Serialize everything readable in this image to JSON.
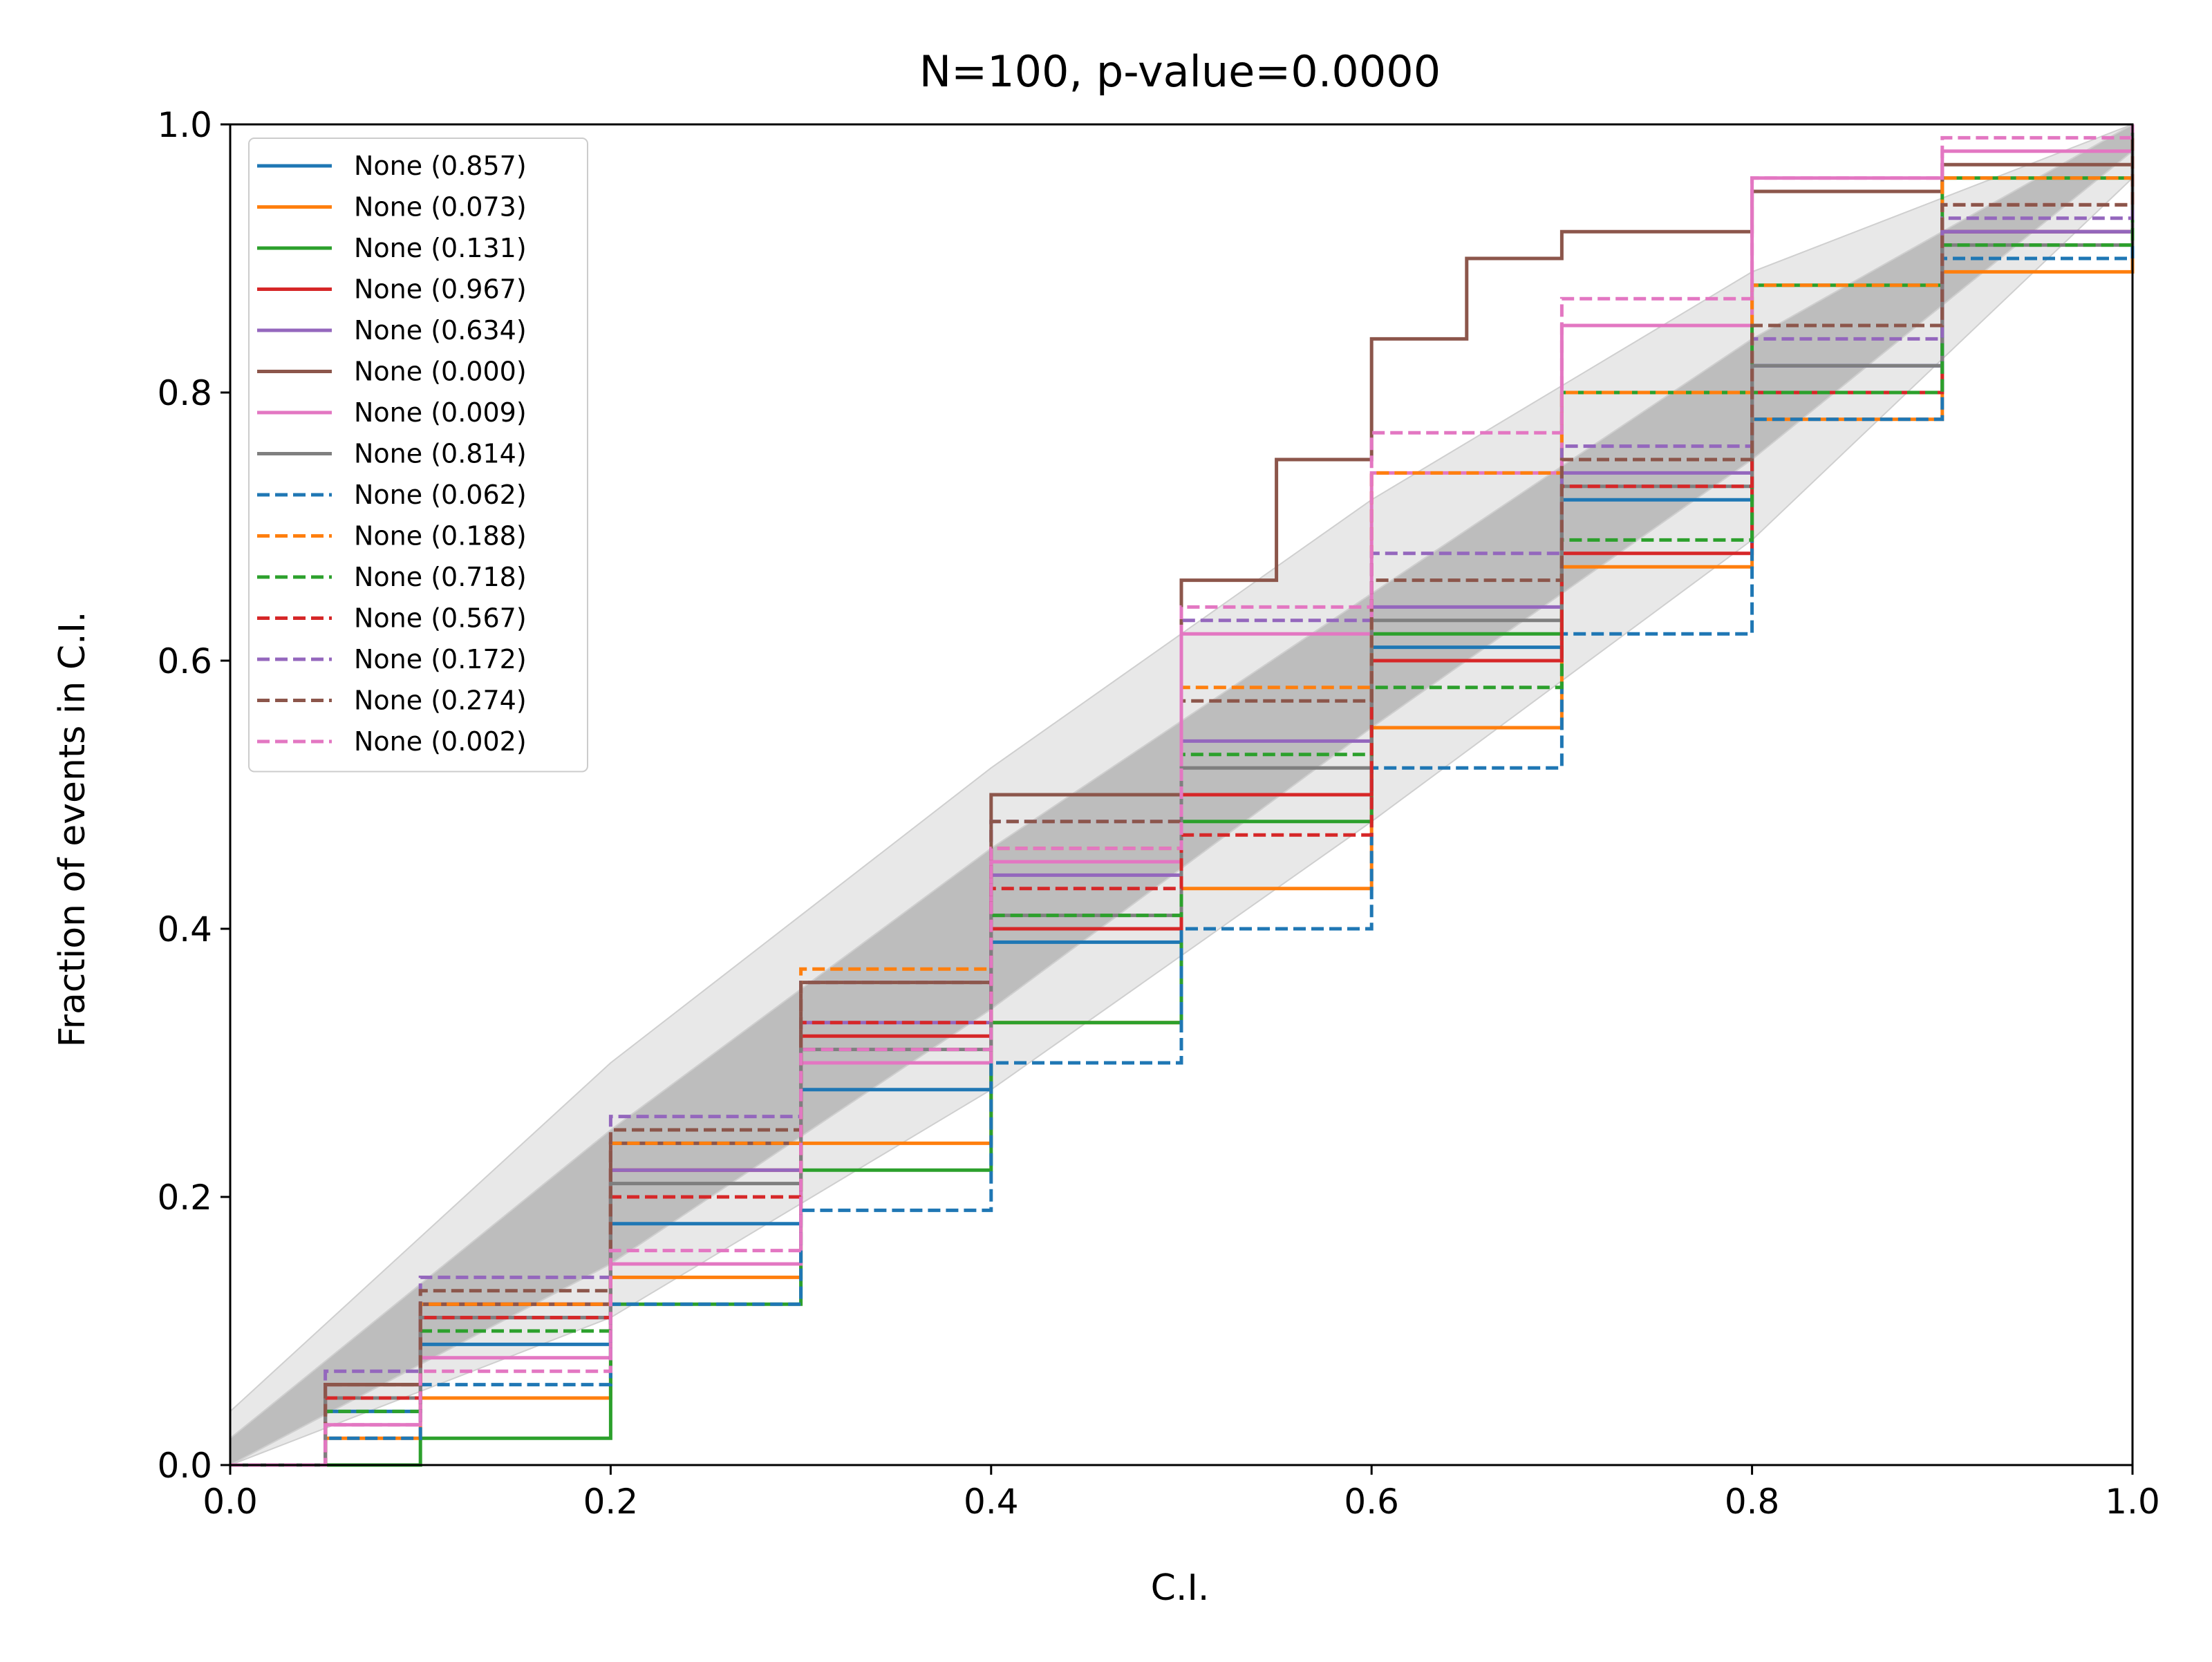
{
  "chart_data": {
    "type": "line",
    "title": "N=100, p-value=0.0000",
    "xlabel": "C.I.",
    "ylabel": "Fraction of events in C.I.",
    "xlim": [
      0,
      1
    ],
    "ylim": [
      0,
      1
    ],
    "xticks": [
      0.0,
      0.2,
      0.4,
      0.6,
      0.8,
      1.0
    ],
    "yticks": [
      0.0,
      0.2,
      0.4,
      0.6,
      0.8,
      1.0
    ],
    "xtick_labels": [
      "0.0",
      "0.2",
      "0.4",
      "0.6",
      "0.8",
      "1.0"
    ],
    "ytick_labels": [
      "0.0",
      "0.2",
      "0.4",
      "0.6",
      "0.8",
      "1.0"
    ],
    "grid": false,
    "legend_position": "upper-left",
    "confidence_bands": [
      {
        "level": "outer",
        "color": "#e8e8e8",
        "x": [
          0,
          0.2,
          0.4,
          0.6,
          0.8,
          1.0
        ],
        "lower": [
          0,
          0.11,
          0.28,
          0.48,
          0.69,
          0.96
        ],
        "upper": [
          0.04,
          0.3,
          0.52,
          0.72,
          0.89,
          1.0
        ]
      },
      {
        "level": "inner",
        "color": "#bdbdbd",
        "x": [
          0,
          0.2,
          0.4,
          0.6,
          0.8,
          1.0
        ],
        "lower": [
          0,
          0.15,
          0.34,
          0.55,
          0.75,
          0.98
        ],
        "upper": [
          0.02,
          0.25,
          0.46,
          0.65,
          0.84,
          1.0
        ]
      }
    ],
    "series": [
      {
        "label": "None (0.857)",
        "color": "#1f77b4",
        "dash": "solid",
        "x": [
          0,
          0.05,
          0.1,
          0.2,
          0.3,
          0.4,
          0.5,
          0.6,
          0.7,
          0.8,
          0.9,
          1.0
        ],
        "y": [
          0,
          0.04,
          0.09,
          0.18,
          0.28,
          0.39,
          0.5,
          0.61,
          0.72,
          0.82,
          0.92,
          1.0
        ]
      },
      {
        "label": "None (0.073)",
        "color": "#ff7f0e",
        "dash": "solid",
        "x": [
          0,
          0.05,
          0.1,
          0.2,
          0.3,
          0.4,
          0.5,
          0.6,
          0.7,
          0.8,
          0.9,
          1.0
        ],
        "y": [
          0,
          0.02,
          0.05,
          0.14,
          0.24,
          0.33,
          0.43,
          0.55,
          0.67,
          0.78,
          0.89,
          1.0
        ]
      },
      {
        "label": "None (0.131)",
        "color": "#2ca02c",
        "dash": "solid",
        "x": [
          0,
          0.05,
          0.1,
          0.2,
          0.3,
          0.4,
          0.5,
          0.6,
          0.7,
          0.8,
          0.9,
          1.0
        ],
        "y": [
          0,
          0.0,
          0.02,
          0.12,
          0.22,
          0.33,
          0.48,
          0.62,
          0.8,
          0.88,
          0.96,
          1.0
        ]
      },
      {
        "label": "None (0.967)",
        "color": "#d62728",
        "dash": "solid",
        "x": [
          0,
          0.05,
          0.1,
          0.2,
          0.3,
          0.4,
          0.5,
          0.6,
          0.7,
          0.8,
          0.9,
          1.0
        ],
        "y": [
          0,
          0.06,
          0.12,
          0.22,
          0.32,
          0.4,
          0.5,
          0.6,
          0.68,
          0.8,
          0.92,
          1.0
        ]
      },
      {
        "label": "None (0.634)",
        "color": "#9467bd",
        "dash": "solid",
        "x": [
          0,
          0.05,
          0.1,
          0.2,
          0.3,
          0.4,
          0.5,
          0.6,
          0.7,
          0.8,
          0.9,
          1.0
        ],
        "y": [
          0,
          0.05,
          0.11,
          0.22,
          0.33,
          0.44,
          0.54,
          0.64,
          0.74,
          0.82,
          0.92,
          1.0
        ]
      },
      {
        "label": "None (0.000)",
        "color": "#8c564b",
        "dash": "solid",
        "x": [
          0,
          0.05,
          0.1,
          0.2,
          0.3,
          0.4,
          0.5,
          0.55,
          0.6,
          0.65,
          0.7,
          0.8,
          0.9,
          1.0
        ],
        "y": [
          0,
          0.06,
          0.12,
          0.24,
          0.36,
          0.5,
          0.66,
          0.75,
          0.84,
          0.9,
          0.92,
          0.95,
          0.97,
          1.0
        ]
      },
      {
        "label": "None (0.009)",
        "color": "#e377c2",
        "dash": "solid",
        "x": [
          0,
          0.05,
          0.1,
          0.2,
          0.3,
          0.4,
          0.5,
          0.6,
          0.7,
          0.8,
          0.9,
          1.0
        ],
        "y": [
          0,
          0.03,
          0.08,
          0.15,
          0.3,
          0.45,
          0.62,
          0.74,
          0.85,
          0.96,
          0.98,
          1.0
        ]
      },
      {
        "label": "None (0.814)",
        "color": "#7f7f7f",
        "dash": "solid",
        "x": [
          0,
          0.05,
          0.1,
          0.2,
          0.3,
          0.4,
          0.5,
          0.6,
          0.7,
          0.8,
          0.9,
          1.0
        ],
        "y": [
          0,
          0.05,
          0.11,
          0.21,
          0.31,
          0.41,
          0.52,
          0.63,
          0.73,
          0.82,
          0.91,
          1.0
        ]
      },
      {
        "label": "None (0.062)",
        "color": "#1f77b4",
        "dash": "dashed",
        "x": [
          0,
          0.05,
          0.1,
          0.2,
          0.3,
          0.4,
          0.5,
          0.6,
          0.7,
          0.8,
          0.9,
          1.0
        ],
        "y": [
          0,
          0.02,
          0.06,
          0.12,
          0.19,
          0.3,
          0.4,
          0.52,
          0.62,
          0.78,
          0.9,
          1.0
        ]
      },
      {
        "label": "None (0.188)",
        "color": "#ff7f0e",
        "dash": "dashed",
        "x": [
          0,
          0.05,
          0.1,
          0.2,
          0.3,
          0.4,
          0.5,
          0.6,
          0.7,
          0.8,
          0.9,
          1.0
        ],
        "y": [
          0,
          0.05,
          0.12,
          0.24,
          0.37,
          0.46,
          0.58,
          0.74,
          0.8,
          0.88,
          0.96,
          1.0
        ]
      },
      {
        "label": "None (0.718)",
        "color": "#2ca02c",
        "dash": "dashed",
        "x": [
          0,
          0.05,
          0.1,
          0.2,
          0.3,
          0.4,
          0.5,
          0.6,
          0.7,
          0.8,
          0.9,
          1.0
        ],
        "y": [
          0,
          0.04,
          0.1,
          0.2,
          0.31,
          0.41,
          0.53,
          0.58,
          0.69,
          0.8,
          0.91,
          1.0
        ]
      },
      {
        "label": "None (0.567)",
        "color": "#d62728",
        "dash": "dashed",
        "x": [
          0,
          0.05,
          0.1,
          0.2,
          0.3,
          0.4,
          0.5,
          0.6,
          0.7,
          0.8,
          0.9,
          1.0
        ],
        "y": [
          0,
          0.05,
          0.11,
          0.2,
          0.33,
          0.43,
          0.47,
          0.6,
          0.73,
          0.85,
          0.94,
          1.0
        ]
      },
      {
        "label": "None (0.172)",
        "color": "#9467bd",
        "dash": "dashed",
        "x": [
          0,
          0.05,
          0.1,
          0.2,
          0.3,
          0.4,
          0.5,
          0.6,
          0.7,
          0.8,
          0.9,
          1.0
        ],
        "y": [
          0,
          0.07,
          0.14,
          0.26,
          0.36,
          0.48,
          0.63,
          0.68,
          0.76,
          0.84,
          0.93,
          1.0
        ]
      },
      {
        "label": "None (0.274)",
        "color": "#8c564b",
        "dash": "dashed",
        "x": [
          0,
          0.05,
          0.1,
          0.2,
          0.3,
          0.4,
          0.5,
          0.6,
          0.7,
          0.8,
          0.9,
          1.0
        ],
        "y": [
          0,
          0.06,
          0.13,
          0.25,
          0.36,
          0.48,
          0.57,
          0.66,
          0.75,
          0.85,
          0.94,
          1.0
        ]
      },
      {
        "label": "None (0.002)",
        "color": "#e377c2",
        "dash": "dashed",
        "x": [
          0,
          0.05,
          0.1,
          0.2,
          0.3,
          0.4,
          0.5,
          0.6,
          0.7,
          0.8,
          0.9,
          1.0
        ],
        "y": [
          0,
          0.03,
          0.07,
          0.16,
          0.31,
          0.46,
          0.64,
          0.77,
          0.87,
          0.96,
          0.99,
          1.0
        ]
      }
    ]
  }
}
